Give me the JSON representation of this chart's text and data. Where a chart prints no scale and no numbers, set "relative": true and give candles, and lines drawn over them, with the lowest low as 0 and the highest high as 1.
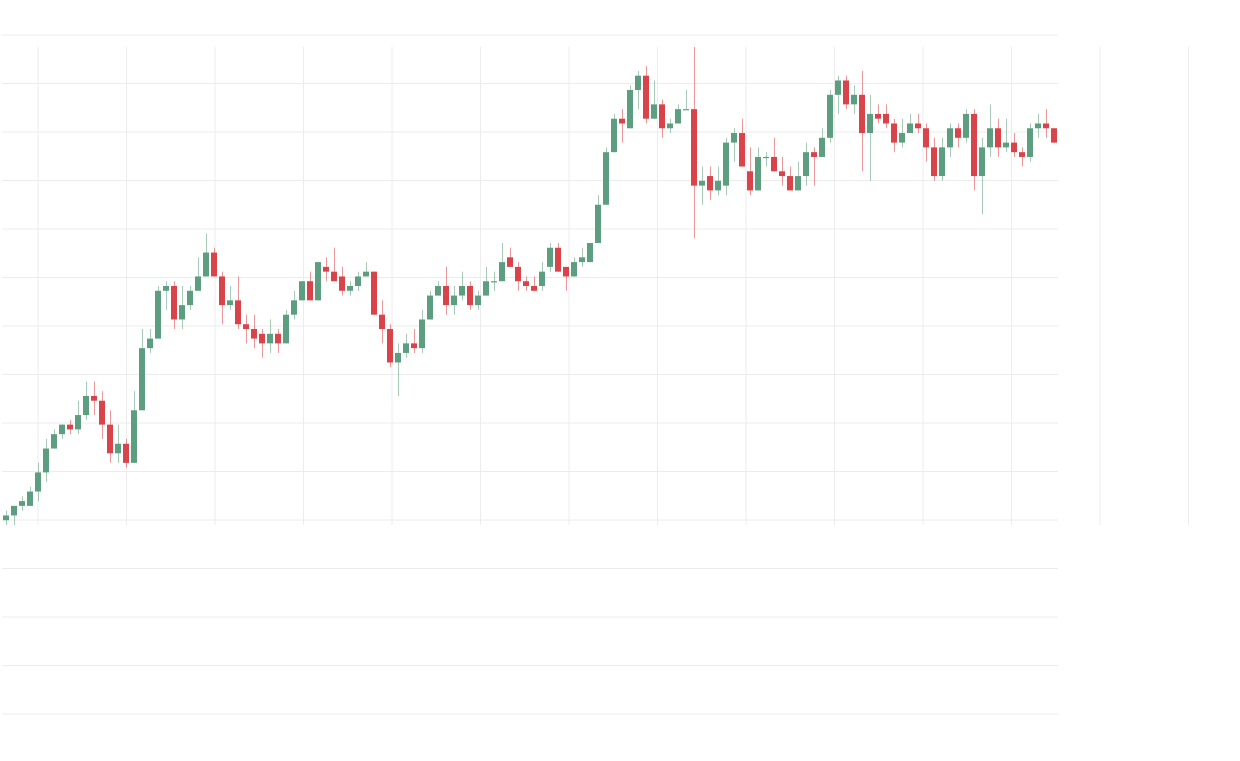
{
  "chart_data": {
    "type": "candlestick",
    "relative": true,
    "grid": true,
    "categories": [
      null,
      null,
      null,
      null,
      null,
      null,
      null,
      null,
      null,
      null,
      null,
      null,
      null,
      null,
      null,
      null,
      null,
      null,
      null,
      null,
      null,
      null,
      null,
      null,
      null,
      null,
      null,
      null,
      null,
      null,
      null,
      null,
      null,
      null,
      null,
      null,
      null,
      null,
      null,
      null,
      null,
      null,
      null,
      null,
      null,
      null,
      null,
      null,
      null,
      null,
      null,
      null,
      null,
      null,
      null,
      null,
      null,
      null,
      null,
      null,
      null,
      null,
      null,
      null,
      null,
      null,
      null,
      null,
      null,
      null,
      null,
      null,
      null,
      null,
      null,
      null,
      null,
      null,
      null,
      null,
      null,
      null,
      null,
      null,
      null,
      null,
      null,
      null,
      null,
      null,
      null,
      null,
      null,
      null,
      null,
      null,
      null,
      null,
      null,
      null,
      null,
      null,
      null,
      null,
      null,
      null,
      null,
      null,
      null,
      null,
      null,
      null,
      null,
      null,
      null,
      null,
      null,
      null,
      null,
      null,
      null,
      null,
      null,
      null,
      null,
      null,
      null,
      null,
      null,
      null,
      null,
      null
    ],
    "ohlc": [
      [
        0.01,
        0.03,
        0.0,
        0.02
      ],
      [
        0.02,
        0.04,
        0,
        0.04
      ],
      [
        0.04,
        0.06,
        0.03,
        0.05
      ],
      [
        0.04,
        0.08,
        0.04,
        0.07
      ],
      [
        0.07,
        0.13,
        0.05,
        0.11
      ],
      [
        0.11,
        0.18,
        0.09,
        0.16
      ],
      [
        0.16,
        0.2,
        0.16,
        0.19
      ],
      [
        0.19,
        0.21,
        0.18,
        0.21
      ],
      [
        0.21,
        0.22,
        0.19,
        0.2
      ],
      [
        0.2,
        0.26,
        0.19,
        0.23
      ],
      [
        0.23,
        0.3,
        0.22,
        0.27
      ],
      [
        0.27,
        0.3,
        0.23,
        0.26
      ],
      [
        0.26,
        0.28,
        0.18,
        0.21
      ],
      [
        0.21,
        0.24,
        0.13,
        0.15
      ],
      [
        0.15,
        0.21,
        0.13,
        0.17
      ],
      [
        0.17,
        0.18,
        0.12,
        0.13
      ],
      [
        0.13,
        0.28,
        0.13,
        0.24
      ],
      [
        0.24,
        0.41,
        0.24,
        0.37
      ],
      [
        0.37,
        0.41,
        0.36,
        0.39
      ],
      [
        0.39,
        0.5,
        0.39,
        0.49
      ],
      [
        0.49,
        0.51,
        0.45,
        0.5
      ],
      [
        0.5,
        0.51,
        0.41,
        0.43
      ],
      [
        0.43,
        0.5,
        0.41,
        0.46
      ],
      [
        0.46,
        0.5,
        0.45,
        0.49
      ],
      [
        0.49,
        0.56,
        0.49,
        0.52
      ],
      [
        0.52,
        0.61,
        0.52,
        0.57
      ],
      [
        0.57,
        0.58,
        0.52,
        0.52
      ],
      [
        0.52,
        0.53,
        0.42,
        0.46
      ],
      [
        0.46,
        0.5,
        0.45,
        0.47
      ],
      [
        0.47,
        0.52,
        0.41,
        0.42
      ],
      [
        0.42,
        0.44,
        0.38,
        0.41
      ],
      [
        0.41,
        0.44,
        0.37,
        0.39
      ],
      [
        0.4,
        0.41,
        0.35,
        0.38
      ],
      [
        0.38,
        0.43,
        0.36,
        0.4
      ],
      [
        0.4,
        0.41,
        0.36,
        0.38
      ],
      [
        0.38,
        0.45,
        0.38,
        0.44
      ],
      [
        0.44,
        0.49,
        0.43,
        0.47
      ],
      [
        0.47,
        0.51,
        0.47,
        0.51
      ],
      [
        0.51,
        0.53,
        0.47,
        0.47
      ],
      [
        0.47,
        0.55,
        0.47,
        0.55
      ],
      [
        0.54,
        0.56,
        0.51,
        0.53
      ],
      [
        0.53,
        0.58,
        0.51,
        0.51
      ],
      [
        0.52,
        0.54,
        0.48,
        0.49
      ],
      [
        0.49,
        0.51,
        0.48,
        0.5
      ],
      [
        0.5,
        0.53,
        0.49,
        0.52
      ],
      [
        0.52,
        0.55,
        0.52,
        0.53
      ],
      [
        0.53,
        0.53,
        0.44,
        0.44
      ],
      [
        0.44,
        0.47,
        0.38,
        0.41
      ],
      [
        0.41,
        0.42,
        0.33,
        0.34
      ],
      [
        0.34,
        0.38,
        0.27,
        0.36
      ],
      [
        0.36,
        0.4,
        0.35,
        0.38
      ],
      [
        0.38,
        0.41,
        0.36,
        0.37
      ],
      [
        0.37,
        0.45,
        0.36,
        0.43
      ],
      [
        0.43,
        0.49,
        0.43,
        0.48
      ],
      [
        0.48,
        0.51,
        0.48,
        0.5
      ],
      [
        0.5,
        0.54,
        0.44,
        0.46
      ],
      [
        0.46,
        0.5,
        0.44,
        0.48
      ],
      [
        0.48,
        0.53,
        0.47,
        0.5
      ],
      [
        0.5,
        0.51,
        0.45,
        0.46
      ],
      [
        0.46,
        0.49,
        0.45,
        0.48
      ],
      [
        0.48,
        0.54,
        0.48,
        0.51
      ],
      [
        0.51,
        0.53,
        0.49,
        0.51
      ],
      [
        0.51,
        0.59,
        0.51,
        0.55
      ],
      [
        0.56,
        0.58,
        0.54,
        0.54
      ],
      [
        0.54,
        0.55,
        0.49,
        0.51
      ],
      [
        0.51,
        0.52,
        0.49,
        0.5
      ],
      [
        0.5,
        0.52,
        0.49,
        0.49
      ],
      [
        0.5,
        0.55,
        0.49,
        0.53
      ],
      [
        0.54,
        0.59,
        0.53,
        0.58
      ],
      [
        0.58,
        0.59,
        0.53,
        0.53
      ],
      [
        0.54,
        0.54,
        0.49,
        0.52
      ],
      [
        0.52,
        0.56,
        0.52,
        0.55
      ],
      [
        0.55,
        0.58,
        0.54,
        0.56
      ],
      [
        0.55,
        0.59,
        0.55,
        0.59
      ],
      [
        0.59,
        0.69,
        0.59,
        0.67
      ],
      [
        0.67,
        0.79,
        0.67,
        0.78
      ],
      [
        0.78,
        0.86,
        0.78,
        0.85
      ],
      [
        0.85,
        0.87,
        0.8,
        0.84
      ],
      [
        0.83,
        0.92,
        0.83,
        0.91
      ],
      [
        0.91,
        0.95,
        0.87,
        0.94
      ],
      [
        0.94,
        0.96,
        0.84,
        0.85
      ],
      [
        0.85,
        0.93,
        0.85,
        0.88
      ],
      [
        0.88,
        0.89,
        0.81,
        0.83
      ],
      [
        0.83,
        0.85,
        0.82,
        0.84
      ],
      [
        0.84,
        0.88,
        0.84,
        0.87
      ],
      [
        0.87,
        0.91,
        0.87,
        0.87
      ],
      [
        0.87,
        1,
        0.6,
        0.71
      ],
      [
        0.71,
        0.75,
        0.67,
        0.72
      ],
      [
        0.73,
        0.75,
        0.68,
        0.7
      ],
      [
        0.7,
        0.75,
        0.69,
        0.72
      ],
      [
        0.71,
        0.81,
        0.69,
        0.8
      ],
      [
        0.8,
        0.83,
        0.76,
        0.82
      ],
      [
        0.82,
        0.85,
        0.75,
        0.75
      ],
      [
        0.74,
        0.79,
        0.69,
        0.7
      ],
      [
        0.7,
        0.79,
        0.7,
        0.77
      ],
      [
        0.77,
        0.78,
        0.75,
        0.77
      ],
      [
        0.77,
        0.81,
        0.74,
        0.74
      ],
      [
        0.74,
        0.77,
        0.71,
        0.73
      ],
      [
        0.73,
        0.75,
        0.7,
        0.7
      ],
      [
        0.7,
        0.76,
        0.7,
        0.73
      ],
      [
        0.73,
        0.8,
        0.71,
        0.78
      ],
      [
        0.78,
        0.79,
        0.71,
        0.77
      ],
      [
        0.77,
        0.83,
        0.77,
        0.81
      ],
      [
        0.81,
        0.91,
        0.8,
        0.9
      ],
      [
        0.9,
        0.94,
        0.86,
        0.93
      ],
      [
        0.93,
        0.94,
        0.87,
        0.88
      ],
      [
        0.88,
        0.92,
        0.86,
        0.9
      ],
      [
        0.9,
        0.95,
        0.74,
        0.82
      ],
      [
        0.82,
        0.9,
        0.72,
        0.86
      ],
      [
        0.86,
        0.88,
        0.84,
        0.85
      ],
      [
        0.86,
        0.88,
        0.83,
        0.84
      ],
      [
        0.84,
        0.85,
        0.78,
        0.8
      ],
      [
        0.8,
        0.85,
        0.79,
        0.82
      ],
      [
        0.82,
        0.86,
        0.82,
        0.84
      ],
      [
        0.84,
        0.86,
        0.82,
        0.83
      ],
      [
        0.83,
        0.84,
        0.76,
        0.79
      ],
      [
        0.79,
        0.81,
        0.72,
        0.73
      ],
      [
        0.73,
        0.81,
        0.72,
        0.79
      ],
      [
        0.79,
        0.84,
        0.77,
        0.83
      ],
      [
        0.83,
        0.84,
        0.79,
        0.81
      ],
      [
        0.81,
        0.87,
        0.8,
        0.86
      ],
      [
        0.86,
        0.87,
        0.7,
        0.73
      ],
      [
        0.73,
        0.81,
        0.65,
        0.79
      ],
      [
        0.79,
        0.88,
        0.77,
        0.83
      ],
      [
        0.83,
        0.85,
        0.77,
        0.79
      ],
      [
        0.79,
        0.85,
        0.78,
        0.8
      ],
      [
        0.8,
        0.82,
        0.77,
        0.78
      ],
      [
        0.78,
        0.79,
        0.75,
        0.77
      ],
      [
        0.77,
        0.84,
        0.76,
        0.83
      ],
      [
        0.83,
        0.86,
        0.81,
        0.84
      ],
      [
        0.84,
        0.87,
        0.81,
        0.83
      ],
      [
        0.83,
        0.83,
        0.8,
        0.8
      ]
    ],
    "colors": [
      "#5e9e80",
      "#5e9e80",
      "#5e9e80",
      "#5e9e80",
      "#5e9e80",
      "#5e9e80",
      "#5e9e80",
      "#5e9e80",
      "#d8444a",
      "#5e9e80",
      "#5e9e80",
      "#d8444a",
      "#d8444a",
      "#d8444a",
      "#5e9e80",
      "#d8444a",
      "#5e9e80",
      "#5e9e80",
      "#5e9e80",
      "#5e9e80",
      "#5e9e80",
      "#d8444a",
      "#5e9e80",
      "#5e9e80",
      "#5e9e80",
      "#5e9e80",
      "#d8444a",
      "#d8444a",
      "#5e9e80",
      "#d8444a",
      "#d8444a",
      "#d8444a",
      "#d8444a",
      "#5e9e80",
      "#d8444a",
      "#5e9e80",
      "#5e9e80",
      "#5e9e80",
      "#d8444a",
      "#5e9e80",
      "#d8444a",
      "#d8444a",
      "#d8444a",
      "#5e9e80",
      "#5e9e80",
      "#5e9e80",
      "#d8444a",
      "#d8444a",
      "#d8444a",
      "#5e9e80",
      "#5e9e80",
      "#d8444a",
      "#5e9e80",
      "#5e9e80",
      "#5e9e80",
      "#d8444a",
      "#5e9e80",
      "#5e9e80",
      "#d8444a",
      "#5e9e80",
      "#5e9e80",
      "#5e9e80",
      "#5e9e80",
      "#d8444a",
      "#d8444a",
      "#d8444a",
      "#d8444a",
      "#5e9e80",
      "#5e9e80",
      "#d8444a",
      "#d8444a",
      "#5e9e80",
      "#5e9e80",
      "#5e9e80",
      "#5e9e80",
      "#5e9e80",
      "#5e9e80",
      "#d8444a",
      "#5e9e80",
      "#5e9e80",
      "#d8444a",
      "#5e9e80",
      "#d8444a",
      "#5e9e80",
      "#5e9e80",
      "#5e9e80",
      "#d8444a",
      "#5e9e80",
      "#d8444a",
      "#5e9e80",
      "#5e9e80",
      "#5e9e80",
      "#d8444a",
      "#d8444a",
      "#5e9e80",
      "#5e9e80",
      "#d8444a",
      "#d8444a",
      "#d8444a",
      "#5e9e80",
      "#5e9e80",
      "#d8444a",
      "#5e9e80",
      "#5e9e80",
      "#5e9e80",
      "#d8444a",
      "#5e9e80",
      "#d8444a",
      "#5e9e80",
      "#d8444a",
      "#d8444a",
      "#d8444a",
      "#5e9e80",
      "#5e9e80",
      "#d8444a",
      "#d8444a",
      "#d8444a",
      "#5e9e80",
      "#5e9e80",
      "#d8444a",
      "#5e9e80",
      "#d8444a",
      "#5e9e80",
      "#5e9e80",
      "#d8444a",
      "#5e9e80",
      "#d8444a",
      "#d8444a",
      "#5e9e80",
      "#5e9e80",
      "#d8444a",
      "#d8444a"
    ]
  }
}
